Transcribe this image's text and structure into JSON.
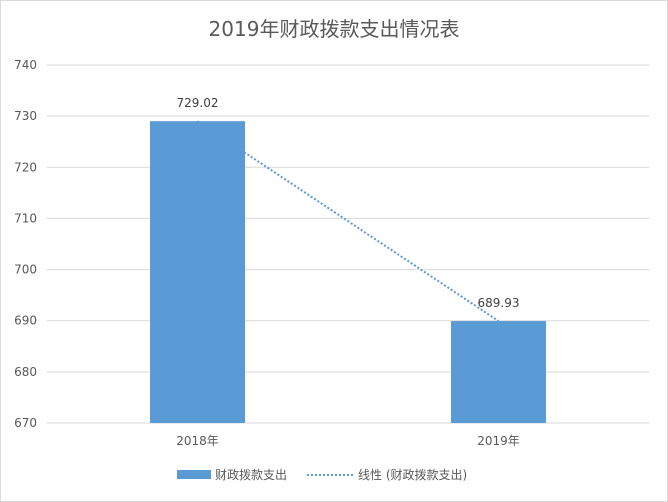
{
  "chart_data": {
    "type": "bar",
    "title": "2019年财政拨款支出情况表",
    "categories": [
      "2018年",
      "2019年"
    ],
    "series": [
      {
        "name": "财政拨款支出",
        "values": [
          729.02,
          689.93
        ],
        "color": "#5b9bd5"
      }
    ],
    "data_labels": [
      "729.02",
      "689.93"
    ],
    "trendline": {
      "type": "linear",
      "name": "线性 (财政拨款支出)",
      "color": "#5b9bd5",
      "style": "dotted"
    },
    "ylim": [
      670,
      740
    ],
    "yticks": [
      670,
      680,
      690,
      700,
      710,
      720,
      730,
      740
    ],
    "ytick_labels": [
      "670",
      "680",
      "690",
      "700",
      "710",
      "720",
      "730",
      "740"
    ],
    "grid": true,
    "legend_position": "bottom"
  }
}
